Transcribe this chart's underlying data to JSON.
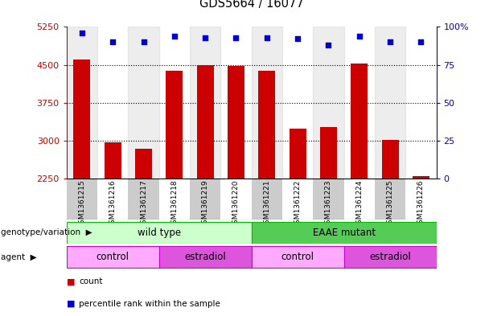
{
  "title": "GDS5664 / 16077",
  "samples": [
    "GSM1361215",
    "GSM1361216",
    "GSM1361217",
    "GSM1361218",
    "GSM1361219",
    "GSM1361220",
    "GSM1361221",
    "GSM1361222",
    "GSM1361223",
    "GSM1361224",
    "GSM1361225",
    "GSM1361226"
  ],
  "counts": [
    4610,
    2960,
    2840,
    4380,
    4490,
    4480,
    4380,
    3230,
    3270,
    4520,
    3020,
    2300
  ],
  "percentiles": [
    96,
    90,
    90,
    94,
    93,
    93,
    93,
    92,
    88,
    94,
    90,
    90
  ],
  "ylim_left": [
    2250,
    5250
  ],
  "ylim_right": [
    0,
    100
  ],
  "yticks_left": [
    2250,
    3000,
    3750,
    4500,
    5250
  ],
  "yticks_right": [
    0,
    25,
    50,
    75,
    100
  ],
  "bar_color": "#cc0000",
  "dot_color": "#0000cc",
  "grid_color": "#000000",
  "title_color": "#000000",
  "left_axis_color": "#cc0000",
  "right_axis_color": "#0000cc",
  "col_bg_color": "#cccccc",
  "chart_bg_color": "#ffffff",
  "genotype_groups": [
    {
      "label": "wild type",
      "start": 0,
      "end": 6,
      "color": "#ccffcc",
      "border": "#00bb00"
    },
    {
      "label": "EAAE mutant",
      "start": 6,
      "end": 12,
      "color": "#55cc55",
      "border": "#00bb00"
    }
  ],
  "agent_groups": [
    {
      "label": "control",
      "start": 0,
      "end": 3,
      "color": "#ffaaff",
      "border": "#cc00cc"
    },
    {
      "label": "estradiol",
      "start": 3,
      "end": 6,
      "color": "#dd55dd",
      "border": "#cc00cc"
    },
    {
      "label": "control",
      "start": 6,
      "end": 9,
      "color": "#ffaaff",
      "border": "#cc00cc"
    },
    {
      "label": "estradiol",
      "start": 9,
      "end": 12,
      "color": "#dd55dd",
      "border": "#cc00cc"
    }
  ],
  "legend_items": [
    {
      "label": "count",
      "color": "#cc0000"
    },
    {
      "label": "percentile rank within the sample",
      "color": "#0000cc"
    }
  ],
  "row_labels": [
    "genotype/variation",
    "agent"
  ],
  "bar_width": 0.55,
  "figsize": [
    6.13,
    3.93
  ],
  "dpi": 100
}
